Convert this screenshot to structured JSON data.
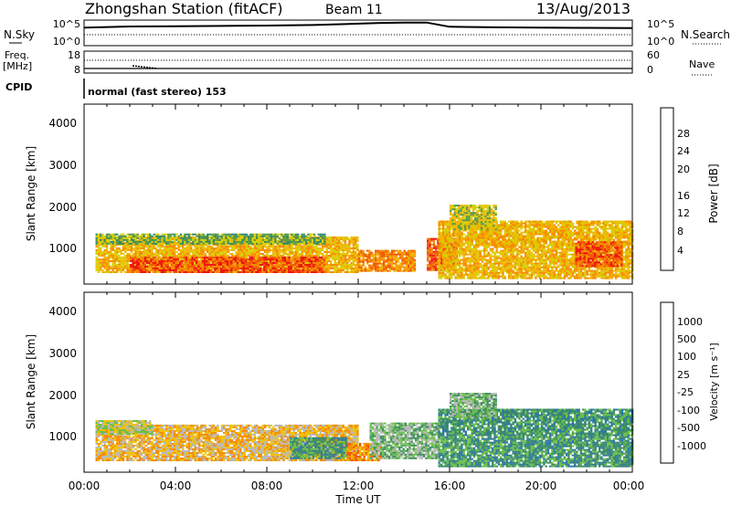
{
  "header": {
    "station": "Zhongshan Station (fitACF)",
    "beam": "Beam 11",
    "date": "13/Aug/2013"
  },
  "summary": {
    "nsky_label": "N.Sky",
    "nsky_ticks": [
      "10^5",
      "10^0"
    ],
    "nsearch_label": "N.Search",
    "nsearch_ticks": [
      "10^5",
      "10^0"
    ],
    "freq_label_1": "Freq.",
    "freq_label_2": "[MHz]",
    "freq_ticks": [
      "18",
      "8"
    ],
    "nave_label": "Nave",
    "nave_ticks": [
      "60",
      "0"
    ],
    "cpid_label": "CPID",
    "cpid_value": "normal (fast stereo) 153"
  },
  "axes": {
    "y_label": "Slant Range [km]",
    "y_ticks": [
      "4000",
      "3000",
      "2000",
      "1000"
    ],
    "x_label": "Time UT",
    "x_ticks": [
      "00:00",
      "04:00",
      "08:00",
      "12:00",
      "16:00",
      "20:00",
      "00:00"
    ]
  },
  "colorbars": {
    "power": {
      "label": "Power [dB]",
      "ticks": [
        "28",
        "24",
        "20",
        "16",
        "12",
        "8",
        "4"
      ],
      "colors": [
        "#ee1111",
        "#f25500",
        "#f58a00",
        "#f2b400",
        "#d8cf00",
        "#5a9a4a",
        "#2c8a6a",
        "#2258b0",
        "#1020e8"
      ]
    },
    "velocity": {
      "label": "Velocity [m s⁻¹]",
      "ticks": [
        "1000",
        "500",
        "100",
        "25",
        "-25",
        "-100",
        "-500",
        "-1000"
      ],
      "colors": [
        "#1f45a8",
        "#2e78a0",
        "#3e8e5e",
        "#6ac04a",
        "#b7b7b7",
        "#f0c000",
        "#f58a00",
        "#f25500",
        "#ee1111"
      ]
    }
  },
  "chart_data": [
    {
      "type": "line",
      "name": "N.Sky",
      "x": [
        0,
        2,
        4,
        6,
        8,
        10,
        12,
        13,
        14,
        15,
        16,
        18,
        20,
        22,
        24
      ],
      "y": [
        5000,
        9000,
        10000,
        12000,
        15000,
        20000,
        40000,
        60000,
        70000,
        70000,
        8000,
        6000,
        5000,
        4500,
        4000
      ],
      "x_range": [
        0,
        24
      ],
      "y_scale": "log",
      "y_range": [
        1,
        100000
      ]
    },
    {
      "type": "heatmap",
      "name": "Power [dB]",
      "x_range_hours": [
        0,
        24
      ],
      "y_range_km": [
        180,
        4600
      ],
      "value_range": [
        0,
        30
      ],
      "regions": [
        {
          "t0": 0.5,
          "t1": 12.0,
          "r0": 450,
          "r1": 1350,
          "value": 18
        },
        {
          "t0": 2.0,
          "t1": 10.5,
          "r0": 450,
          "r1": 850,
          "value": 28
        },
        {
          "t0": 0.5,
          "t1": 10.5,
          "r0": 1150,
          "r1": 1400,
          "value": 10
        },
        {
          "t0": 12.0,
          "t1": 14.5,
          "r0": 480,
          "r1": 1000,
          "value": 24
        },
        {
          "t0": 15.0,
          "t1": 16.3,
          "r0": 500,
          "r1": 1300,
          "value": 26
        },
        {
          "t0": 15.5,
          "t1": 24.0,
          "r0": 300,
          "r1": 1700,
          "value": 20
        },
        {
          "t0": 16.0,
          "t1": 18.0,
          "r0": 1500,
          "r1": 2100,
          "value": 16
        },
        {
          "t0": 21.5,
          "t1": 23.5,
          "r0": 600,
          "r1": 1200,
          "value": 26
        }
      ]
    },
    {
      "type": "heatmap",
      "name": "Velocity [m s-1]",
      "x_range_hours": [
        0,
        24
      ],
      "y_range_km": [
        180,
        4600
      ],
      "value_range": [
        -1000,
        1000
      ],
      "regions": [
        {
          "t0": 0.5,
          "t1": 12.0,
          "r0": 450,
          "r1": 1350,
          "value": -300
        },
        {
          "t0": 0.5,
          "t1": 3.0,
          "r0": 1100,
          "r1": 1450,
          "value": 0
        },
        {
          "t0": 9.0,
          "t1": 11.5,
          "r0": 500,
          "r1": 1000,
          "value": 600
        },
        {
          "t0": 11.5,
          "t1": 13.0,
          "r0": 450,
          "r1": 900,
          "value": -600
        },
        {
          "t0": 12.5,
          "t1": 15.5,
          "r0": 500,
          "r1": 1400,
          "value": 200
        },
        {
          "t0": 15.5,
          "t1": 24.0,
          "r0": 300,
          "r1": 1700,
          "value": 400
        },
        {
          "t0": 16.0,
          "t1": 18.0,
          "r0": 1500,
          "r1": 2100,
          "value": 200
        }
      ]
    }
  ]
}
